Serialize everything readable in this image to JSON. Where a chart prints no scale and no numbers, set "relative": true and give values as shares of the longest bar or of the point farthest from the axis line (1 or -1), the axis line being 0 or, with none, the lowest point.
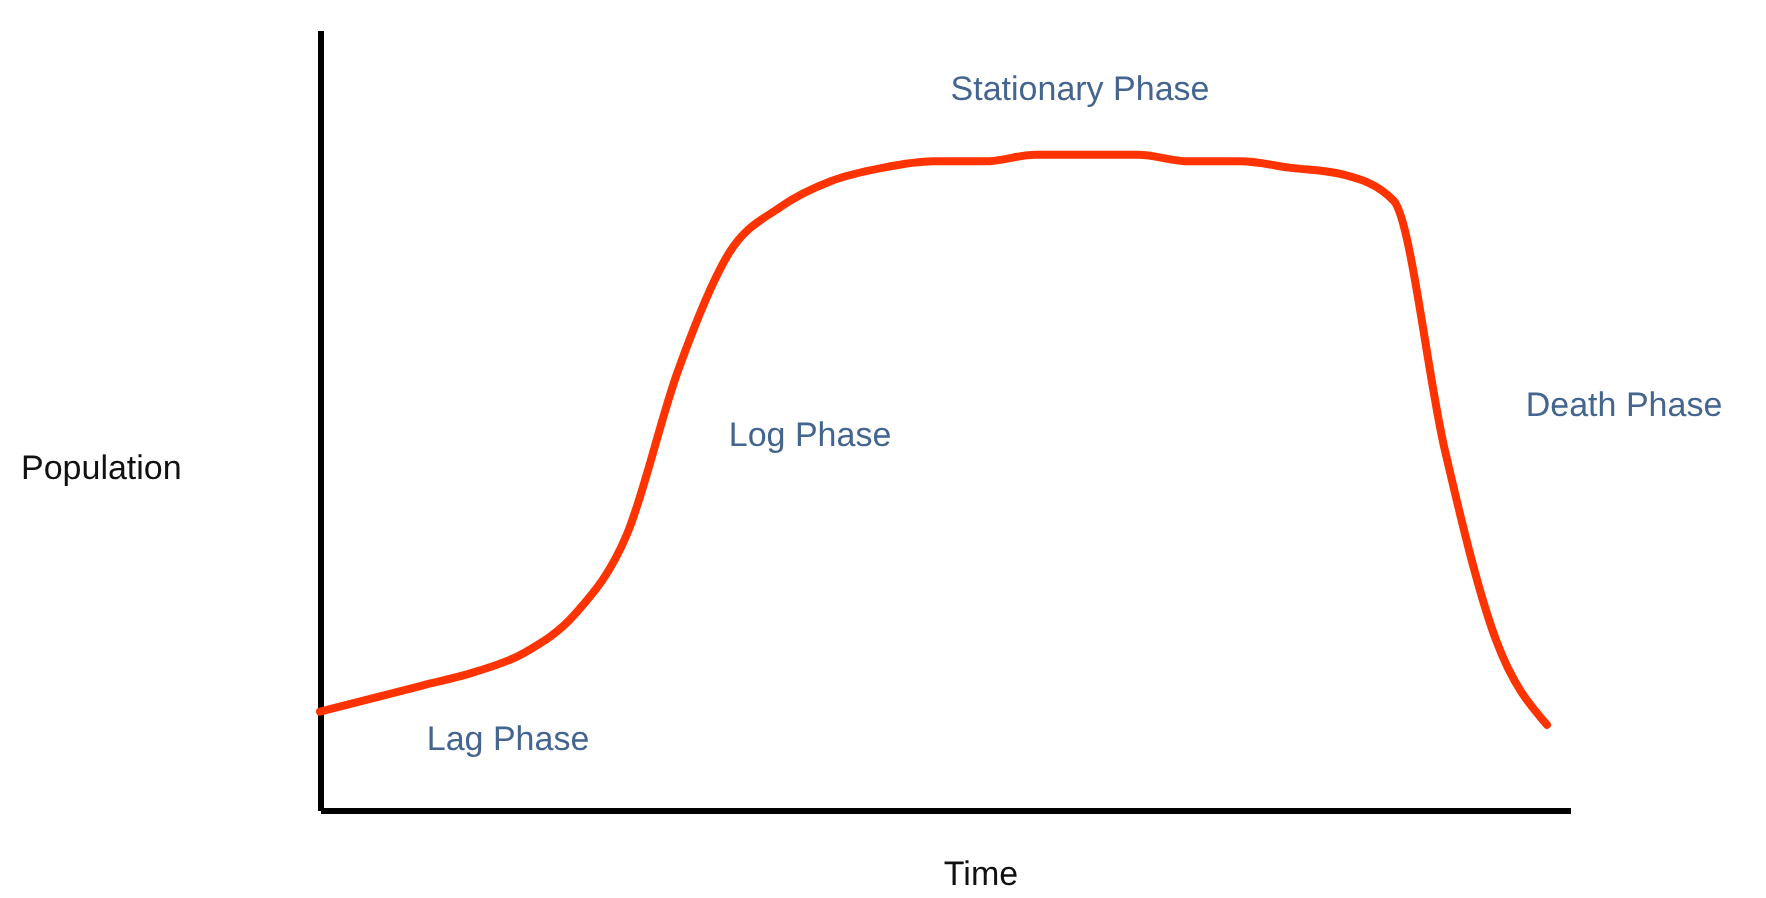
{
  "chart_data": {
    "type": "line",
    "relative": true,
    "xlabel": "Time",
    "ylabel": "Population",
    "annotations": [
      "Stationary Phase",
      "Log Phase",
      "Lag Phase",
      "Death Phase"
    ],
    "categories": [
      null,
      null,
      null,
      null,
      null,
      null,
      null,
      null,
      null,
      null,
      null,
      null,
      null,
      null,
      null,
      null,
      null,
      null,
      null,
      null,
      null,
      null,
      null,
      null,
      null
    ],
    "series": [
      {
        "color": "#ff3300",
        "values": [
          0.15,
          0.17,
          0.19,
          0.21,
          0.24,
          0.3,
          0.42,
          0.67,
          0.85,
          0.92,
          0.96,
          0.98,
          0.99,
          0.99,
          1,
          1,
          1,
          0.99,
          0.99,
          0.98,
          0.97,
          0.93,
          0.55,
          0.26,
          0.13
        ]
      }
    ],
    "grid": false,
    "marker": "none",
    "line_style": "solid"
  }
}
